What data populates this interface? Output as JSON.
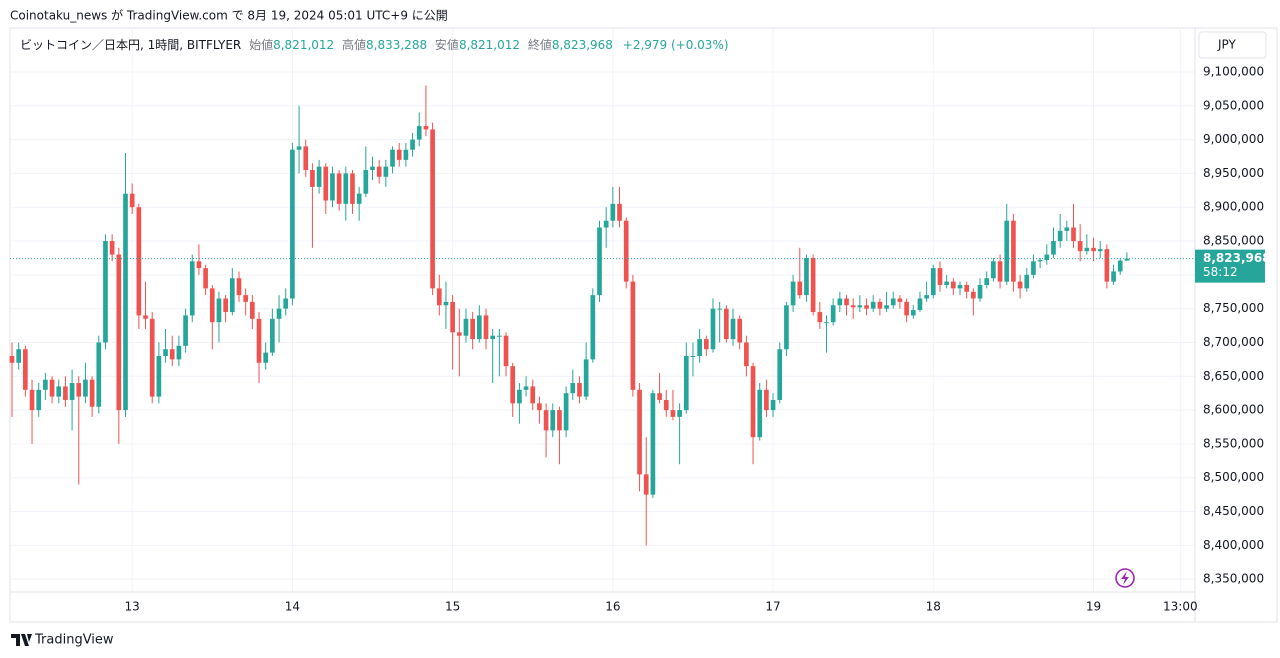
{
  "header": {
    "text": "Coinotaku_news が TradingView.com で 8月 19, 2024 05:01 UTC+9 に公開"
  },
  "legend": {
    "symbol": "ビットコイン／日本円, 1時間, BITFLYER",
    "open_label": "始値",
    "open": "8,821,012",
    "high_label": "高値",
    "high": "8,833,288",
    "low_label": "安値",
    "low": "8,821,012",
    "close_label": "終値",
    "close": "8,823,968",
    "change": "+2,979 (+0.03%)"
  },
  "footer": {
    "brand": "TradingView"
  },
  "chart_data": {
    "type": "candlestick",
    "currency": "JPY",
    "up_color": "#26a69a",
    "down_color": "#ef5350",
    "grid": true,
    "last_price_label": "8,823,968",
    "countdown": "58:12",
    "ylim": [
      8334000,
      9165000
    ],
    "yticks": [
      {
        "value": 8350000,
        "label": "8,350,000"
      },
      {
        "value": 8400000,
        "label": "8,400,000"
      },
      {
        "value": 8450000,
        "label": "8,450,000"
      },
      {
        "value": 8500000,
        "label": "8,500,000"
      },
      {
        "value": 8550000,
        "label": "8,550,000"
      },
      {
        "value": 8600000,
        "label": "8,600,000"
      },
      {
        "value": 8650000,
        "label": "8,650,000"
      },
      {
        "value": 8700000,
        "label": "8,700,000"
      },
      {
        "value": 8750000,
        "label": "8,750,000"
      },
      {
        "value": 8800000,
        "label": "8,800,000"
      },
      {
        "value": 8850000,
        "label": "8,850,000"
      },
      {
        "value": 8900000,
        "label": "8,900,000"
      },
      {
        "value": 8950000,
        "label": "8,950,000"
      },
      {
        "value": 9000000,
        "label": "9,000,000"
      },
      {
        "value": 9050000,
        "label": "9,050,000"
      },
      {
        "value": 9100000,
        "label": "9,100,000"
      }
    ],
    "xlim": [
      -0.3,
      176.9
    ],
    "xticks": [
      {
        "value": 18,
        "label": "13"
      },
      {
        "value": 42,
        "label": "14"
      },
      {
        "value": 66,
        "label": "15"
      },
      {
        "value": 90,
        "label": "16"
      },
      {
        "value": 114,
        "label": "17"
      },
      {
        "value": 138,
        "label": "18"
      },
      {
        "value": 162,
        "label": "19"
      },
      {
        "value": 175,
        "label": "13:00"
      }
    ],
    "ohlc": [
      [
        8680000,
        8700000,
        8590000,
        8670000
      ],
      [
        8670000,
        8700000,
        8660000,
        8690000
      ],
      [
        8690000,
        8695000,
        8620000,
        8630000
      ],
      [
        8630000,
        8645000,
        8550000,
        8600000
      ],
      [
        8600000,
        8640000,
        8590000,
        8630000
      ],
      [
        8630000,
        8655000,
        8615000,
        8645000
      ],
      [
        8645000,
        8650000,
        8610000,
        8620000
      ],
      [
        8620000,
        8645000,
        8610000,
        8635000
      ],
      [
        8635000,
        8650000,
        8605000,
        8615000
      ],
      [
        8615000,
        8660000,
        8570000,
        8640000
      ],
      [
        8640000,
        8650000,
        8490000,
        8620000
      ],
      [
        8620000,
        8670000,
        8610000,
        8645000
      ],
      [
        8645000,
        8650000,
        8590000,
        8605000
      ],
      [
        8605000,
        8710000,
        8595000,
        8700000
      ],
      [
        8700000,
        8860000,
        8690000,
        8850000
      ],
      [
        8850000,
        8860000,
        8820000,
        8830000
      ],
      [
        8830000,
        8840000,
        8550000,
        8600000
      ],
      [
        8600000,
        8980000,
        8590000,
        8920000
      ],
      [
        8920000,
        8935000,
        8890000,
        8900000
      ],
      [
        8900000,
        8905000,
        8720000,
        8740000
      ],
      [
        8740000,
        8790000,
        8720000,
        8735000
      ],
      [
        8735000,
        8745000,
        8610000,
        8620000
      ],
      [
        8620000,
        8700000,
        8610000,
        8680000
      ],
      [
        8680000,
        8720000,
        8670000,
        8690000
      ],
      [
        8690000,
        8710000,
        8665000,
        8675000
      ],
      [
        8675000,
        8710000,
        8665000,
        8695000
      ],
      [
        8695000,
        8750000,
        8685000,
        8740000
      ],
      [
        8740000,
        8830000,
        8730000,
        8820000
      ],
      [
        8820000,
        8845000,
        8800000,
        8810000
      ],
      [
        8810000,
        8815000,
        8770000,
        8780000
      ],
      [
        8780000,
        8785000,
        8690000,
        8730000
      ],
      [
        8730000,
        8775000,
        8700000,
        8765000
      ],
      [
        8765000,
        8770000,
        8730000,
        8745000
      ],
      [
        8745000,
        8810000,
        8740000,
        8795000
      ],
      [
        8795000,
        8805000,
        8760000,
        8770000
      ],
      [
        8770000,
        8780000,
        8740000,
        8760000
      ],
      [
        8760000,
        8770000,
        8720000,
        8735000
      ],
      [
        8735000,
        8745000,
        8640000,
        8670000
      ],
      [
        8670000,
        8700000,
        8660000,
        8685000
      ],
      [
        8685000,
        8750000,
        8680000,
        8735000
      ],
      [
        8735000,
        8770000,
        8700000,
        8750000
      ],
      [
        8750000,
        8780000,
        8740000,
        8765000
      ],
      [
        8765000,
        8995000,
        8755000,
        8985000
      ],
      [
        8985000,
        9050000,
        8950000,
        8990000
      ],
      [
        8990000,
        9000000,
        8945000,
        8955000
      ],
      [
        8955000,
        8965000,
        8840000,
        8930000
      ],
      [
        8930000,
        8970000,
        8920000,
        8960000
      ],
      [
        8960000,
        8965000,
        8890000,
        8910000
      ],
      [
        8910000,
        8960000,
        8900000,
        8950000
      ],
      [
        8950000,
        8955000,
        8895000,
        8905000
      ],
      [
        8905000,
        8960000,
        8880000,
        8950000
      ],
      [
        8950000,
        8955000,
        8890000,
        8905000
      ],
      [
        8905000,
        8930000,
        8880000,
        8920000
      ],
      [
        8920000,
        8990000,
        8915000,
        8955000
      ],
      [
        8955000,
        8975000,
        8940000,
        8960000
      ],
      [
        8960000,
        8970000,
        8935000,
        8945000
      ],
      [
        8945000,
        8970000,
        8930000,
        8960000
      ],
      [
        8960000,
        8990000,
        8950000,
        8985000
      ],
      [
        8985000,
        8995000,
        8960000,
        8970000
      ],
      [
        8970000,
        8995000,
        8960000,
        8985000
      ],
      [
        8985000,
        9010000,
        8975000,
        9000000
      ],
      [
        9000000,
        9040000,
        8990000,
        9020000
      ],
      [
        9020000,
        9080000,
        9005000,
        9015000
      ],
      [
        9015000,
        9025000,
        8770000,
        8780000
      ],
      [
        8780000,
        8800000,
        8740000,
        8755000
      ],
      [
        8755000,
        8790000,
        8720000,
        8760000
      ],
      [
        8760000,
        8770000,
        8660000,
        8715000
      ],
      [
        8715000,
        8750000,
        8650000,
        8710000
      ],
      [
        8710000,
        8750000,
        8700000,
        8735000
      ],
      [
        8735000,
        8745000,
        8690000,
        8705000
      ],
      [
        8705000,
        8755000,
        8700000,
        8740000
      ],
      [
        8740000,
        8750000,
        8690000,
        8705000
      ],
      [
        8705000,
        8720000,
        8640000,
        8710000
      ],
      [
        8710000,
        8720000,
        8650000,
        8710000
      ],
      [
        8710000,
        8715000,
        8650000,
        8665000
      ],
      [
        8665000,
        8670000,
        8590000,
        8610000
      ],
      [
        8610000,
        8640000,
        8580000,
        8630000
      ],
      [
        8630000,
        8650000,
        8620000,
        8635000
      ],
      [
        8635000,
        8645000,
        8600000,
        8610000
      ],
      [
        8610000,
        8620000,
        8580000,
        8600000
      ],
      [
        8600000,
        8610000,
        8530000,
        8570000
      ],
      [
        8570000,
        8610000,
        8560000,
        8600000
      ],
      [
        8600000,
        8605000,
        8520000,
        8570000
      ],
      [
        8570000,
        8635000,
        8560000,
        8625000
      ],
      [
        8625000,
        8660000,
        8615000,
        8640000
      ],
      [
        8640000,
        8650000,
        8610000,
        8620000
      ],
      [
        8620000,
        8700000,
        8615000,
        8675000
      ],
      [
        8675000,
        8780000,
        8670000,
        8770000
      ],
      [
        8770000,
        8880000,
        8760000,
        8870000
      ],
      [
        8870000,
        8900000,
        8840000,
        8880000
      ],
      [
        8880000,
        8930000,
        8870000,
        8905000
      ],
      [
        8905000,
        8930000,
        8870000,
        8880000
      ],
      [
        8880000,
        8885000,
        8780000,
        8790000
      ],
      [
        8790000,
        8800000,
        8620000,
        8630000
      ],
      [
        8630000,
        8640000,
        8480000,
        8505000
      ],
      [
        8505000,
        8560000,
        8400000,
        8475000
      ],
      [
        8475000,
        8630000,
        8470000,
        8625000
      ],
      [
        8625000,
        8655000,
        8610000,
        8615000
      ],
      [
        8615000,
        8630000,
        8590000,
        8600000
      ],
      [
        8600000,
        8630000,
        8585000,
        8590000
      ],
      [
        8590000,
        8610000,
        8520000,
        8600000
      ],
      [
        8600000,
        8700000,
        8595000,
        8680000
      ],
      [
        8680000,
        8700000,
        8650000,
        8680000
      ],
      [
        8680000,
        8720000,
        8670000,
        8705000
      ],
      [
        8705000,
        8710000,
        8680000,
        8690000
      ],
      [
        8690000,
        8765000,
        8685000,
        8750000
      ],
      [
        8750000,
        8760000,
        8700000,
        8750000
      ],
      [
        8750000,
        8755000,
        8700000,
        8705000
      ],
      [
        8705000,
        8750000,
        8695000,
        8735000
      ],
      [
        8735000,
        8740000,
        8690000,
        8700000
      ],
      [
        8700000,
        8710000,
        8650000,
        8665000
      ],
      [
        8665000,
        8670000,
        8520000,
        8560000
      ],
      [
        8560000,
        8640000,
        8555000,
        8630000
      ],
      [
        8630000,
        8645000,
        8590000,
        8600000
      ],
      [
        8600000,
        8625000,
        8590000,
        8615000
      ],
      [
        8615000,
        8700000,
        8610000,
        8690000
      ],
      [
        8690000,
        8760000,
        8680000,
        8755000
      ],
      [
        8755000,
        8800000,
        8745000,
        8790000
      ],
      [
        8790000,
        8840000,
        8765000,
        8770000
      ],
      [
        8770000,
        8830000,
        8760000,
        8825000
      ],
      [
        8825000,
        8830000,
        8740000,
        8745000
      ],
      [
        8745000,
        8760000,
        8720000,
        8730000
      ],
      [
        8730000,
        8740000,
        8685000,
        8730000
      ],
      [
        8730000,
        8765000,
        8725000,
        8755000
      ],
      [
        8755000,
        8775000,
        8745000,
        8765000
      ],
      [
        8765000,
        8770000,
        8740000,
        8755000
      ],
      [
        8755000,
        8765000,
        8735000,
        8752000
      ],
      [
        8752000,
        8770000,
        8745000,
        8755000
      ],
      [
        8755000,
        8765000,
        8740000,
        8750000
      ],
      [
        8750000,
        8770000,
        8745000,
        8760000
      ],
      [
        8760000,
        8765000,
        8740000,
        8750000
      ],
      [
        8750000,
        8775000,
        8745000,
        8755000
      ],
      [
        8755000,
        8775000,
        8750000,
        8765000
      ],
      [
        8765000,
        8770000,
        8750000,
        8760000
      ],
      [
        8760000,
        8765000,
        8730000,
        8740000
      ],
      [
        8740000,
        8755000,
        8735000,
        8748000
      ],
      [
        8748000,
        8775000,
        8745000,
        8765000
      ],
      [
        8765000,
        8790000,
        8760000,
        8770000
      ],
      [
        8770000,
        8815000,
        8765000,
        8810000
      ],
      [
        8810000,
        8820000,
        8775000,
        8785000
      ],
      [
        8785000,
        8800000,
        8780000,
        8790000
      ],
      [
        8790000,
        8795000,
        8770000,
        8780000
      ],
      [
        8780000,
        8790000,
        8770000,
        8785000
      ],
      [
        8785000,
        8790000,
        8765000,
        8775000
      ],
      [
        8775000,
        8780000,
        8740000,
        8765000
      ],
      [
        8765000,
        8795000,
        8760000,
        8785000
      ],
      [
        8785000,
        8805000,
        8780000,
        8795000
      ],
      [
        8795000,
        8825000,
        8790000,
        8820000
      ],
      [
        8820000,
        8830000,
        8780000,
        8790000
      ],
      [
        8790000,
        8905000,
        8785000,
        8880000
      ],
      [
        8880000,
        8890000,
        8775000,
        8790000
      ],
      [
        8790000,
        8800000,
        8765000,
        8780000
      ],
      [
        8780000,
        8810000,
        8775000,
        8800000
      ],
      [
        8800000,
        8830000,
        8795000,
        8820000
      ],
      [
        8820000,
        8825000,
        8810000,
        8822000
      ],
      [
        8822000,
        8845000,
        8815000,
        8830000
      ],
      [
        8830000,
        8870000,
        8825000,
        8850000
      ],
      [
        8850000,
        8890000,
        8840000,
        8865000
      ],
      [
        8865000,
        8880000,
        8850000,
        8870000
      ],
      [
        8870000,
        8905000,
        8840000,
        8850000
      ],
      [
        8850000,
        8875000,
        8820000,
        8835000
      ],
      [
        8835000,
        8860000,
        8830000,
        8840000
      ],
      [
        8840000,
        8855000,
        8820000,
        8835000
      ],
      [
        8835000,
        8850000,
        8825000,
        8838000
      ],
      [
        8838000,
        8845000,
        8780000,
        8790000
      ],
      [
        8790000,
        8815000,
        8785000,
        8805000
      ],
      [
        8805000,
        8825000,
        8800000,
        8820989
      ],
      [
        8821012,
        8833288,
        8821012,
        8823968
      ]
    ]
  }
}
